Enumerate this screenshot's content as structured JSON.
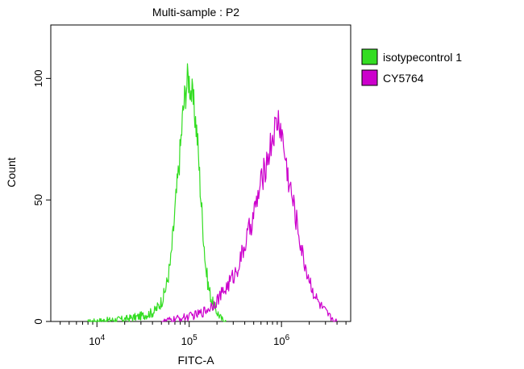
{
  "chart_data": {
    "type": "line",
    "title": "Multi-sample : P2",
    "xlabel": "FITC-A",
    "ylabel": "Count",
    "x_scale": "log10",
    "xlim_log10": [
      3.5,
      6.75
    ],
    "ylim": [
      0,
      122
    ],
    "y_ticks": [
      {
        "value": 0,
        "label": "0"
      },
      {
        "value": 50,
        "label": "50"
      },
      {
        "value": 100,
        "label": "100"
      }
    ],
    "x_major_ticks": [
      {
        "log10": 4,
        "base": "10",
        "exp": "4"
      },
      {
        "log10": 5,
        "base": "10",
        "exp": "5"
      },
      {
        "log10": 6,
        "base": "10",
        "exp": "6"
      }
    ],
    "legend_position": "right",
    "series": [
      {
        "name": "isotypecontrol 1",
        "color": "#33dd22",
        "points": [
          [
            3.9,
            0
          ],
          [
            4.1,
            0.5
          ],
          [
            4.3,
            1
          ],
          [
            4.45,
            2
          ],
          [
            4.55,
            3
          ],
          [
            4.62,
            4
          ],
          [
            4.68,
            7
          ],
          [
            4.72,
            10
          ],
          [
            4.76,
            16
          ],
          [
            4.8,
            25
          ],
          [
            4.83,
            38
          ],
          [
            4.86,
            52
          ],
          [
            4.88,
            60
          ],
          [
            4.91,
            74
          ],
          [
            4.93,
            85
          ],
          [
            4.95,
            92
          ],
          [
            4.97,
            97
          ],
          [
            4.99,
            101
          ],
          [
            5.01,
            97
          ],
          [
            5.03,
            93
          ],
          [
            5.06,
            86
          ],
          [
            5.09,
            75
          ],
          [
            5.12,
            55
          ],
          [
            5.15,
            38
          ],
          [
            5.18,
            22
          ],
          [
            5.21,
            14
          ],
          [
            5.25,
            8
          ],
          [
            5.3,
            4
          ],
          [
            5.35,
            1
          ],
          [
            5.4,
            0
          ]
        ]
      },
      {
        "name": "CY5764",
        "color": "#cc00cc",
        "points": [
          [
            4.7,
            0
          ],
          [
            4.85,
            1
          ],
          [
            5.0,
            2
          ],
          [
            5.1,
            3
          ],
          [
            5.2,
            5
          ],
          [
            5.28,
            8
          ],
          [
            5.35,
            11
          ],
          [
            5.42,
            15
          ],
          [
            5.5,
            20
          ],
          [
            5.57,
            27
          ],
          [
            5.63,
            35
          ],
          [
            5.7,
            44
          ],
          [
            5.75,
            52
          ],
          [
            5.8,
            60
          ],
          [
            5.84,
            66
          ],
          [
            5.88,
            72
          ],
          [
            5.91,
            77
          ],
          [
            5.94,
            80
          ],
          [
            5.97,
            83
          ],
          [
            6.0,
            78
          ],
          [
            6.03,
            70
          ],
          [
            6.07,
            60
          ],
          [
            6.12,
            50
          ],
          [
            6.18,
            38
          ],
          [
            6.23,
            27
          ],
          [
            6.28,
            20
          ],
          [
            6.33,
            14
          ],
          [
            6.38,
            9
          ],
          [
            6.45,
            5
          ],
          [
            6.52,
            2
          ],
          [
            6.6,
            0
          ]
        ]
      }
    ]
  }
}
